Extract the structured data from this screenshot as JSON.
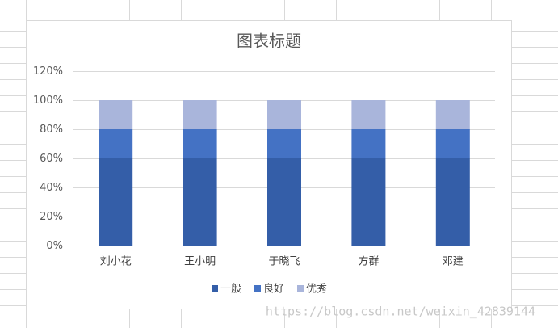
{
  "chart_data": {
    "type": "stacked-bar",
    "title": "图表标题",
    "categories": [
      "刘小花",
      "王小明",
      "于晓飞",
      "方群",
      "邓建"
    ],
    "series": [
      {
        "name": "一般",
        "color": "#345ea8",
        "values": [
          60,
          60,
          60,
          60,
          60
        ]
      },
      {
        "name": "良好",
        "color": "#4472c4",
        "values": [
          20,
          20,
          20,
          20,
          20
        ]
      },
      {
        "name": "优秀",
        "color": "#a9b5db",
        "values": [
          20,
          20,
          20,
          20,
          20
        ]
      }
    ],
    "ylim": [
      0,
      120
    ],
    "yticks": [
      {
        "value": 0,
        "label": "0%"
      },
      {
        "value": 20,
        "label": "20%"
      },
      {
        "value": 40,
        "label": "40%"
      },
      {
        "value": 60,
        "label": "60%"
      },
      {
        "value": 80,
        "label": "80%"
      },
      {
        "value": 100,
        "label": "100%"
      },
      {
        "value": 120,
        "label": "120%"
      }
    ],
    "grid": true,
    "legend": "bottom",
    "watermark": "https://blog.csdn.net/weixin_42839144"
  }
}
